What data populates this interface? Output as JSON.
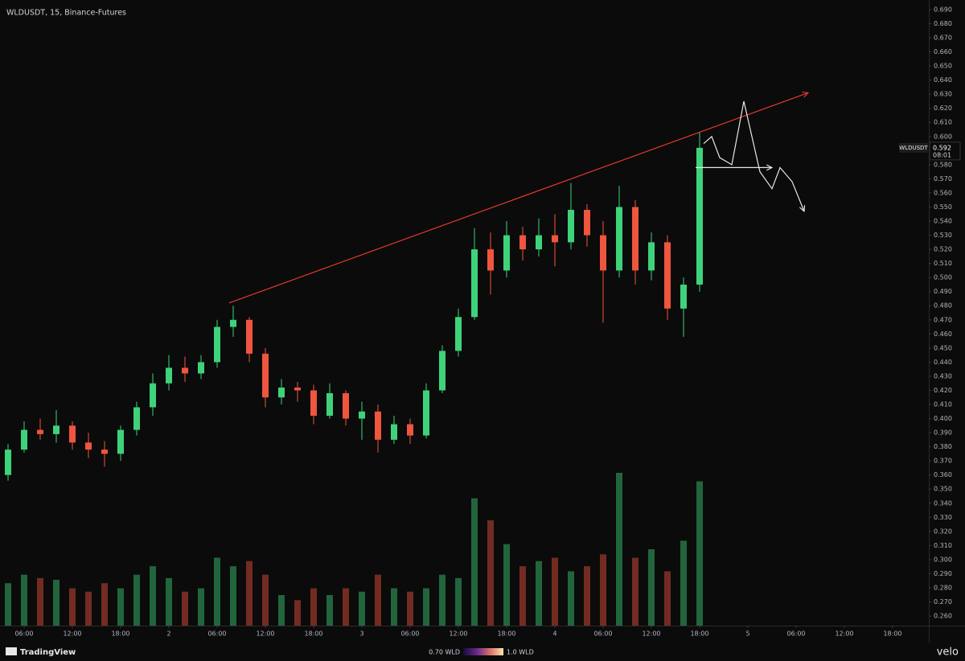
{
  "chart_data": {
    "type": "candlestick",
    "title": "WLDUSDT, 15, Binance-Futures",
    "symbol_tag": "WLDUSDT",
    "last_price": 0.592,
    "countdown": "08:01",
    "up_color": "#3ed37a",
    "down_color": "#f0553f",
    "candles": {
      "x": [
        1,
        3,
        5,
        7,
        9,
        11,
        13,
        15,
        17,
        19,
        21,
        23,
        25,
        27,
        29,
        31,
        33,
        35,
        37,
        39,
        41,
        43,
        45,
        47,
        49,
        51,
        53,
        55,
        57,
        59,
        61,
        63,
        65,
        67,
        69,
        71,
        73,
        75,
        77,
        79,
        81,
        83,
        85,
        87
      ],
      "open": [
        0.36,
        0.378,
        0.392,
        0.389,
        0.395,
        0.383,
        0.378,
        0.375,
        0.392,
        0.408,
        0.425,
        0.436,
        0.432,
        0.44,
        0.465,
        0.47,
        0.446,
        0.415,
        0.422,
        0.42,
        0.402,
        0.418,
        0.4,
        0.405,
        0.385,
        0.396,
        0.388,
        0.42,
        0.448,
        0.472,
        0.52,
        0.505,
        0.53,
        0.52,
        0.53,
        0.525,
        0.548,
        0.53,
        0.505,
        0.55,
        0.505,
        0.525,
        0.478,
        0.495
      ],
      "high": [
        0.382,
        0.398,
        0.4,
        0.406,
        0.398,
        0.39,
        0.384,
        0.395,
        0.412,
        0.432,
        0.445,
        0.444,
        0.445,
        0.47,
        0.48,
        0.472,
        0.45,
        0.428,
        0.426,
        0.424,
        0.425,
        0.42,
        0.412,
        0.41,
        0.402,
        0.4,
        0.425,
        0.452,
        0.478,
        0.535,
        0.532,
        0.54,
        0.536,
        0.542,
        0.545,
        0.567,
        0.552,
        0.54,
        0.565,
        0.555,
        0.532,
        0.53,
        0.5,
        0.603
      ],
      "low": [
        0.356,
        0.376,
        0.385,
        0.383,
        0.378,
        0.372,
        0.366,
        0.37,
        0.388,
        0.402,
        0.42,
        0.426,
        0.428,
        0.436,
        0.458,
        0.44,
        0.408,
        0.41,
        0.412,
        0.396,
        0.4,
        0.395,
        0.385,
        0.376,
        0.382,
        0.382,
        0.386,
        0.418,
        0.444,
        0.47,
        0.488,
        0.5,
        0.512,
        0.515,
        0.508,
        0.52,
        0.522,
        0.468,
        0.5,
        0.495,
        0.498,
        0.47,
        0.458,
        0.49
      ],
      "close": [
        0.378,
        0.392,
        0.389,
        0.395,
        0.383,
        0.378,
        0.375,
        0.392,
        0.408,
        0.425,
        0.436,
        0.432,
        0.44,
        0.465,
        0.47,
        0.446,
        0.415,
        0.422,
        0.42,
        0.402,
        0.418,
        0.4,
        0.405,
        0.385,
        0.396,
        0.388,
        0.42,
        0.448,
        0.472,
        0.52,
        0.505,
        0.53,
        0.52,
        0.53,
        0.525,
        0.548,
        0.53,
        0.505,
        0.55,
        0.505,
        0.525,
        0.478,
        0.495,
        0.592
      ],
      "volume": [
        25,
        30,
        28,
        27,
        22,
        20,
        25,
        22,
        30,
        35,
        28,
        20,
        22,
        40,
        35,
        38,
        30,
        18,
        15,
        22,
        18,
        22,
        20,
        30,
        22,
        20,
        22,
        30,
        28,
        75,
        62,
        48,
        35,
        38,
        40,
        32,
        35,
        42,
        90,
        40,
        45,
        32,
        50,
        85
      ]
    },
    "trendline": {
      "color": "#e5382f",
      "x": [
        28.5,
        100.5
      ],
      "y": [
        0.482,
        0.631
      ]
    },
    "scenario_path": {
      "color": "#e8e8e8",
      "x": [
        87.5,
        88.5,
        89.5,
        91,
        92.5,
        94.5,
        96,
        97,
        98.5,
        100
      ],
      "y": [
        0.595,
        0.6,
        0.585,
        0.58,
        0.625,
        0.575,
        0.563,
        0.578,
        0.568,
        0.547
      ]
    },
    "level_arrow": {
      "color": "#e8e8e8",
      "x": [
        86.5,
        96
      ],
      "y": [
        0.578,
        0.578
      ]
    },
    "xlim": [
      0,
      115.5
    ],
    "ylim": [
      0.2532,
      0.6968
    ],
    "xticks": [
      {
        "value": 3,
        "label": "06:00"
      },
      {
        "value": 9,
        "label": "12:00"
      },
      {
        "value": 15,
        "label": "18:00"
      },
      {
        "value": 21,
        "label": "2"
      },
      {
        "value": 27,
        "label": "06:00"
      },
      {
        "value": 33,
        "label": "12:00"
      },
      {
        "value": 39,
        "label": "18:00"
      },
      {
        "value": 45,
        "label": "3"
      },
      {
        "value": 51,
        "label": "06:00"
      },
      {
        "value": 57,
        "label": "12:00"
      },
      {
        "value": 63,
        "label": "18:00"
      },
      {
        "value": 69,
        "label": "4"
      },
      {
        "value": 75,
        "label": "06:00"
      },
      {
        "value": 81,
        "label": "12:00"
      },
      {
        "value": 87,
        "label": "18:00"
      },
      {
        "value": 93,
        "label": "5"
      },
      {
        "value": 99,
        "label": "06:00"
      },
      {
        "value": 105,
        "label": "12:00"
      },
      {
        "value": 111,
        "label": "18:00"
      }
    ],
    "yticks": [
      {
        "value": 0.69,
        "label": "0.690"
      },
      {
        "value": 0.68,
        "label": "0.680"
      },
      {
        "value": 0.67,
        "label": "0.670"
      },
      {
        "value": 0.66,
        "label": "0.660"
      },
      {
        "value": 0.65,
        "label": "0.650"
      },
      {
        "value": 0.64,
        "label": "0.640"
      },
      {
        "value": 0.63,
        "label": "0.630"
      },
      {
        "value": 0.62,
        "label": "0.620"
      },
      {
        "value": 0.61,
        "label": "0.610"
      },
      {
        "value": 0.6,
        "label": "0.600"
      },
      {
        "value": 0.59,
        "label": "0.590"
      },
      {
        "value": 0.58,
        "label": "0.580"
      },
      {
        "value": 0.57,
        "label": "0.570"
      },
      {
        "value": 0.56,
        "label": "0.560"
      },
      {
        "value": 0.55,
        "label": "0.550"
      },
      {
        "value": 0.54,
        "label": "0.540"
      },
      {
        "value": 0.53,
        "label": "0.530"
      },
      {
        "value": 0.52,
        "label": "0.520"
      },
      {
        "value": 0.51,
        "label": "0.510"
      },
      {
        "value": 0.5,
        "label": "0.500"
      },
      {
        "value": 0.49,
        "label": "0.490"
      },
      {
        "value": 0.48,
        "label": "0.480"
      },
      {
        "value": 0.47,
        "label": "0.470"
      },
      {
        "value": 0.46,
        "label": "0.460"
      },
      {
        "value": 0.45,
        "label": "0.450"
      },
      {
        "value": 0.44,
        "label": "0.440"
      },
      {
        "value": 0.43,
        "label": "0.430"
      },
      {
        "value": 0.42,
        "label": "0.420"
      },
      {
        "value": 0.41,
        "label": "0.410"
      },
      {
        "value": 0.4,
        "label": "0.400"
      },
      {
        "value": 0.39,
        "label": "0.390"
      },
      {
        "value": 0.38,
        "label": "0.380"
      },
      {
        "value": 0.37,
        "label": "0.370"
      },
      {
        "value": 0.36,
        "label": "0.360"
      },
      {
        "value": 0.35,
        "label": "0.350"
      },
      {
        "value": 0.34,
        "label": "0.340"
      },
      {
        "value": 0.33,
        "label": "0.330"
      },
      {
        "value": 0.32,
        "label": "0.320"
      },
      {
        "value": 0.31,
        "label": "0.310"
      },
      {
        "value": 0.3,
        "label": "0.300"
      },
      {
        "value": 0.29,
        "label": "0.290"
      },
      {
        "value": 0.28,
        "label": "0.280"
      },
      {
        "value": 0.27,
        "label": "0.270"
      },
      {
        "value": 0.26,
        "label": "0.260"
      }
    ]
  },
  "footer": {
    "brand": "TradingView",
    "scale_min_label": "0.70 WLD",
    "scale_max_label": "1.0 WLD",
    "watermark": "velo"
  }
}
